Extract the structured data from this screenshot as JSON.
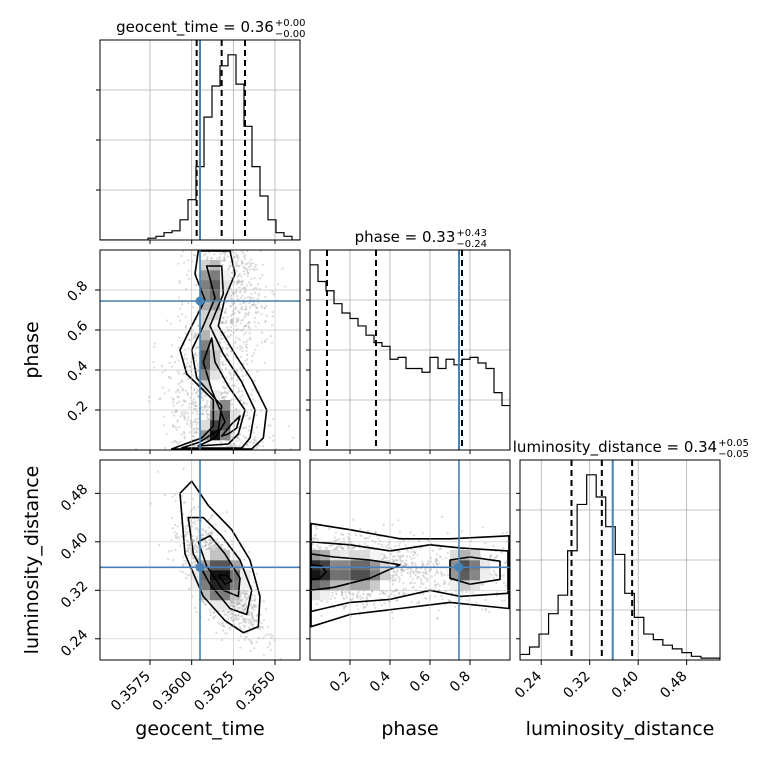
{
  "chart_data": {
    "type": "corner",
    "parameters": [
      "geocent_time",
      "phase",
      "luminosity_distance"
    ],
    "titles": {
      "geocent_time": {
        "name": "geocent_time",
        "median": "0.36",
        "plus": "+0.00",
        "minus": "−0.00"
      },
      "phase": {
        "name": "phase",
        "median": "0.33",
        "plus": "+0.43",
        "minus": "−0.24"
      },
      "luminosity_distance": {
        "name": "luminosity_distance",
        "median": "0.34",
        "plus": "+0.05",
        "minus": "−0.05"
      }
    },
    "ranges": {
      "geocent_time": [
        0.3545,
        0.3665
      ],
      "phase": [
        0.0,
        1.0
      ],
      "luminosity_distance": [
        0.205,
        0.535
      ]
    },
    "ticks": {
      "geocent_time": {
        "values": [
          0.3575,
          0.36,
          0.3625,
          0.365
        ],
        "labels": [
          "0.3575",
          "0.3600",
          "0.3625",
          "0.3650"
        ]
      },
      "phase": {
        "values": [
          0.2,
          0.4,
          0.6,
          0.8
        ],
        "labels": [
          "0.2",
          "0.4",
          "0.6",
          "0.8"
        ]
      },
      "luminosity_distance": {
        "values": [
          0.24,
          0.32,
          0.4,
          0.48
        ],
        "labels": [
          "0.24",
          "0.32",
          "0.40",
          "0.48"
        ]
      }
    },
    "truths": {
      "geocent_time": 0.3605,
      "phase": 0.745,
      "luminosity_distance": 0.358
    },
    "quantiles": {
      "geocent_time": [
        0.3603,
        0.3618,
        0.3632
      ],
      "phase": [
        0.085,
        0.33,
        0.76
      ],
      "luminosity_distance": [
        0.29,
        0.34,
        0.39
      ]
    },
    "marginals": {
      "geocent_time": {
        "edges_start": 0.3545,
        "edges_end": 0.3665,
        "counts": [
          0,
          0,
          0,
          0,
          0,
          0,
          1,
          2,
          4,
          5,
          11,
          22,
          40,
          67,
          84,
          95,
          101,
          85,
          62,
          40,
          24,
          11,
          4,
          2,
          0
        ]
      },
      "phase": {
        "edges_start": 0.0,
        "edges_end": 1.0,
        "counts": [
          100,
          91,
          86,
          79,
          74,
          71,
          67,
          62,
          58,
          56,
          49,
          50,
          44,
          44,
          42,
          50,
          44,
          49,
          46,
          49,
          50,
          47,
          44,
          31,
          24
        ]
      },
      "luminosity_distance": {
        "edges_start": 0.205,
        "edges_end": 0.535,
        "counts": [
          3,
          7,
          14,
          25,
          35,
          59,
          84,
          100,
          88,
          72,
          57,
          36,
          23,
          14,
          11,
          8,
          6,
          4,
          2,
          1,
          1
        ]
      }
    },
    "grid": true,
    "colors": {
      "truth": "#4682b4",
      "contour": "#000000",
      "samples": "#b0b0b0"
    }
  }
}
